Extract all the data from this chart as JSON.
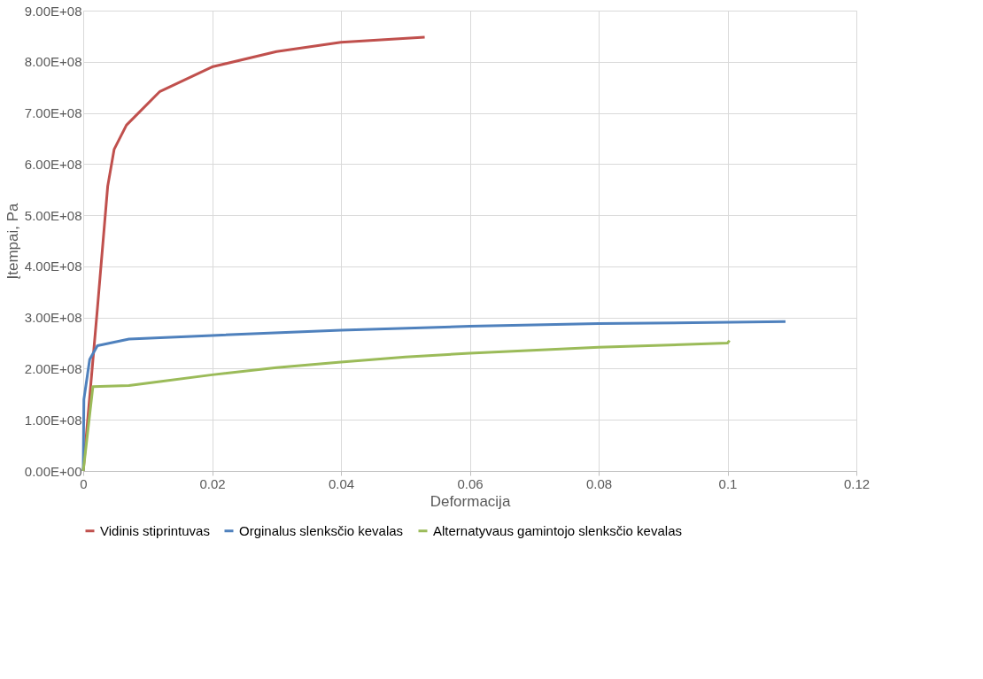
{
  "chart_data": {
    "type": "line",
    "xlabel": "Deformacija",
    "ylabel": "Įtempai, Pa",
    "xlim": [
      0,
      0.12
    ],
    "xticks": [
      0,
      0.02,
      0.04,
      0.06,
      0.08,
      0.1,
      0.12
    ],
    "ylim": [
      0,
      900000000
    ],
    "yticks": [
      {
        "value": 0,
        "label": "0.00E+00"
      },
      {
        "value": 100000000,
        "label": "1.00E+08"
      },
      {
        "value": 200000000,
        "label": "2.00E+08"
      },
      {
        "value": 300000000,
        "label": "3.00E+08"
      },
      {
        "value": 400000000,
        "label": "4.00E+08"
      },
      {
        "value": 500000000,
        "label": "5.00E+08"
      },
      {
        "value": 600000000,
        "label": "6.00E+08"
      },
      {
        "value": 700000000,
        "label": "7.00E+08"
      },
      {
        "value": 800000000,
        "label": "8.00E+08"
      },
      {
        "value": 900000000,
        "label": "9.00E+08"
      }
    ],
    "grid": true,
    "legend": "bottom",
    "marker": "none",
    "line_style": "solid",
    "series": [
      {
        "name": "Vidinis stiprintuvas",
        "color": "#c0504d",
        "x": [
          0,
          0.0022,
          0.0038,
          0.0048,
          0.0067,
          0.0119,
          0.02,
          0.03,
          0.04,
          0.053
        ],
        "values": [
          0,
          318000000,
          557000000,
          629000000,
          676000000,
          742000000,
          790000000,
          820000000,
          838000000,
          848000000
        ]
      },
      {
        "name": "Orginalus slenksčio kevalas",
        "color": "#4f81bd",
        "x": [
          0,
          0.0001,
          0.001,
          0.0022,
          0.0071,
          0.02,
          0.04,
          0.06,
          0.08,
          0.109
        ],
        "values": [
          0,
          140000000,
          218000000,
          245000000,
          258000000,
          265000000,
          275000000,
          283000000,
          288000000,
          292000000
        ]
      },
      {
        "name": "Alternatyvaus gamintojo slenksčio kevalas",
        "color": "#9bbb59",
        "x": [
          0,
          0.0015,
          0.0071,
          0.0119,
          0.02,
          0.03,
          0.04,
          0.05,
          0.06,
          0.08,
          0.1,
          0.1003
        ],
        "values": [
          0,
          165000000,
          167000000,
          175000000,
          188000000,
          202000000,
          213000000,
          223000000,
          230000000,
          242000000,
          250000000,
          255000000
        ]
      }
    ]
  }
}
